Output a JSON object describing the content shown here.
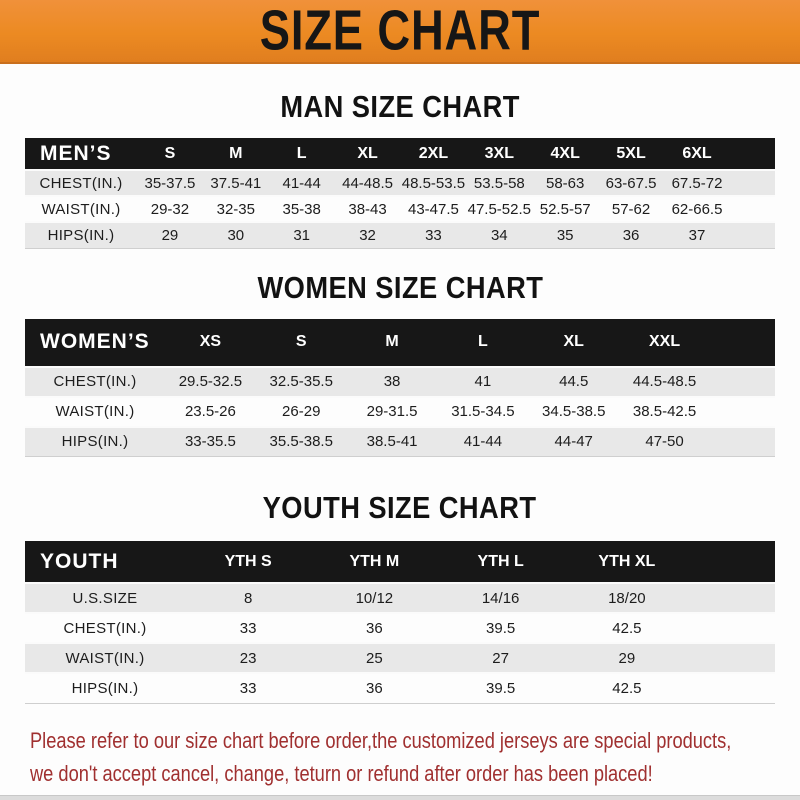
{
  "banner": {
    "title": "SIZE CHART",
    "bg_color": "#EC8A22",
    "text_color": "#161616"
  },
  "sections": {
    "men": {
      "title": "MAN SIZE CHART",
      "header": {
        "label": "MEN’S",
        "columns": [
          "S",
          "M",
          "L",
          "XL",
          "2XL",
          "3XL",
          "4XL",
          "5XL",
          "6XL"
        ]
      },
      "rows": [
        {
          "label": "CHEST(IN.)",
          "values": [
            "35-37.5",
            "37.5-41",
            "41-44",
            "44-48.5",
            "48.5-53.5",
            "53.5-58",
            "58-63",
            "63-67.5",
            "67.5-72"
          ]
        },
        {
          "label": "WAIST(IN.)",
          "values": [
            "29-32",
            "32-35",
            "35-38",
            "38-43",
            "43-47.5",
            "47.5-52.5",
            "52.5-57",
            "57-62",
            "62-66.5"
          ]
        },
        {
          "label": "HIPS(IN.)",
          "values": [
            "29",
            "30",
            "31",
            "32",
            "33",
            "34",
            "35",
            "36",
            "37"
          ]
        }
      ]
    },
    "women": {
      "title": "WOMEN SIZE CHART",
      "header": {
        "label": "WOMEN’S",
        "columns": [
          "XS",
          "S",
          "M",
          "L",
          "XL",
          "XXL"
        ]
      },
      "rows": [
        {
          "label": "CHEST(IN.)",
          "values": [
            "29.5-32.5",
            "32.5-35.5",
            "38",
            "41",
            "44.5",
            "44.5-48.5"
          ]
        },
        {
          "label": "WAIST(IN.)",
          "values": [
            "23.5-26",
            "26-29",
            "29-31.5",
            "31.5-34.5",
            "34.5-38.5",
            "38.5-42.5"
          ]
        },
        {
          "label": "HIPS(IN.)",
          "values": [
            "33-35.5",
            "35.5-38.5",
            "38.5-41",
            "41-44",
            "44-47",
            "47-50"
          ]
        }
      ]
    },
    "youth": {
      "title": "YOUTH SIZE CHART",
      "header": {
        "label": "YOUTH",
        "columns": [
          "YTH S",
          "YTH M",
          "YTH L",
          "YTH XL"
        ]
      },
      "rows": [
        {
          "label": "U.S.SIZE",
          "values": [
            "8",
            "10/12",
            "14/16",
            "18/20"
          ]
        },
        {
          "label": "CHEST(IN.)",
          "values": [
            "33",
            "36",
            "39.5",
            "42.5"
          ]
        },
        {
          "label": "WAIST(IN.)",
          "values": [
            "23",
            "25",
            "27",
            "29"
          ]
        },
        {
          "label": "HIPS(IN.)",
          "values": [
            "33",
            "36",
            "39.5",
            "42.5"
          ]
        }
      ]
    }
  },
  "footer": {
    "text_color": "#A03030",
    "lines": [
      "Please refer to our size chart before order,the customized jerseys are special products,",
      "we don't accept cancel, change, teturn or refund after order has been placed!"
    ]
  },
  "colors": {
    "header_bar": "#171717",
    "row_shade": "#E8E8E8",
    "bottom_strip": "#DCDCDC"
  }
}
